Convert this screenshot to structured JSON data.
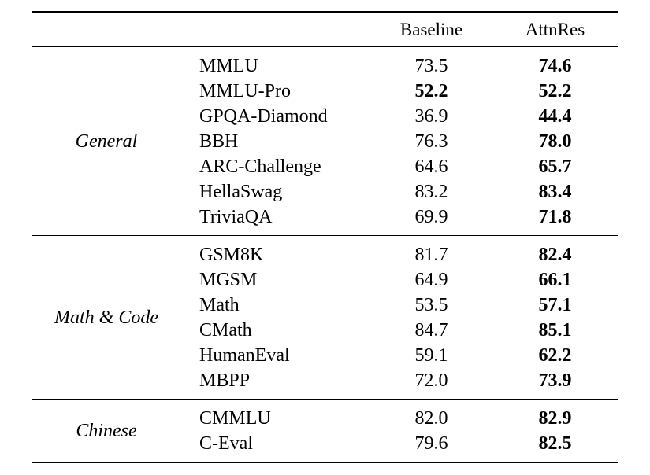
{
  "page": {
    "background": "#ffffff",
    "text_color": "#000000",
    "rule_color": "#000000"
  },
  "table": {
    "header": {
      "baseline": "Baseline",
      "attnres": "AttnRes"
    },
    "sections": [
      {
        "category": "General",
        "rows": [
          {
            "benchmark": "MMLU",
            "baseline": "73.5",
            "attnres": "74.6",
            "baseline_bold": false
          },
          {
            "benchmark": "MMLU-Pro",
            "baseline": "52.2",
            "attnres": "52.2",
            "baseline_bold": true
          },
          {
            "benchmark": "GPQA-Diamond",
            "baseline": "36.9",
            "attnres": "44.4",
            "baseline_bold": false
          },
          {
            "benchmark": "BBH",
            "baseline": "76.3",
            "attnres": "78.0",
            "baseline_bold": false
          },
          {
            "benchmark": "ARC-Challenge",
            "baseline": "64.6",
            "attnres": "65.7",
            "baseline_bold": false
          },
          {
            "benchmark": "HellaSwag",
            "baseline": "83.2",
            "attnres": "83.4",
            "baseline_bold": false
          },
          {
            "benchmark": "TriviaQA",
            "baseline": "69.9",
            "attnres": "71.8",
            "baseline_bold": false
          }
        ]
      },
      {
        "category": "Math & Code",
        "rows": [
          {
            "benchmark": "GSM8K",
            "baseline": "81.7",
            "attnres": "82.4",
            "baseline_bold": false
          },
          {
            "benchmark": "MGSM",
            "baseline": "64.9",
            "attnres": "66.1",
            "baseline_bold": false
          },
          {
            "benchmark": "Math",
            "baseline": "53.5",
            "attnres": "57.1",
            "baseline_bold": false
          },
          {
            "benchmark": "CMath",
            "baseline": "84.7",
            "attnres": "85.1",
            "baseline_bold": false
          },
          {
            "benchmark": "HumanEval",
            "baseline": "59.1",
            "attnres": "62.2",
            "baseline_bold": false
          },
          {
            "benchmark": "MBPP",
            "baseline": "72.0",
            "attnres": "73.9",
            "baseline_bold": false
          }
        ]
      },
      {
        "category": "Chinese",
        "rows": [
          {
            "benchmark": "CMMLU",
            "baseline": "82.0",
            "attnres": "82.9",
            "baseline_bold": false
          },
          {
            "benchmark": "C-Eval",
            "baseline": "79.6",
            "attnres": "82.5",
            "baseline_bold": false
          }
        ]
      }
    ]
  }
}
